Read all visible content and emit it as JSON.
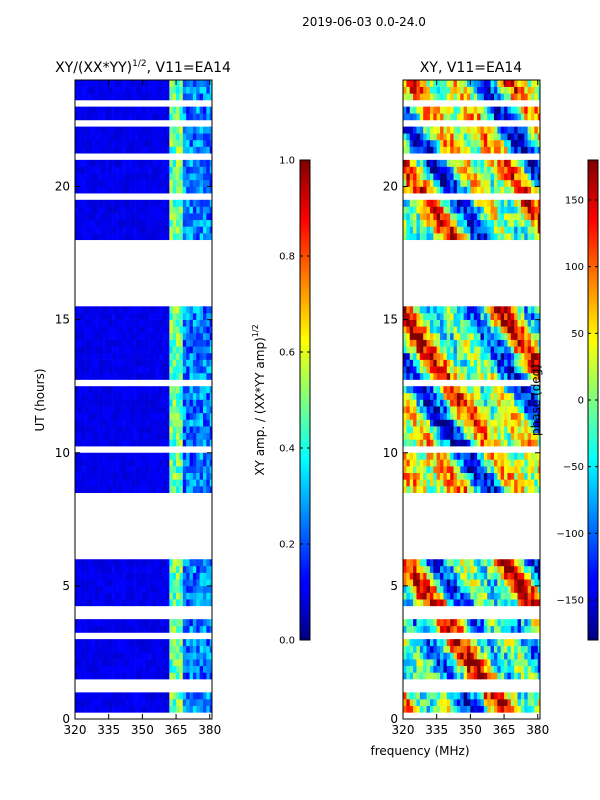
{
  "chart_data": {
    "suptitle": "2019-06-03 0.0-24.0",
    "xlabel": "frequency (MHz)",
    "ylabel": "UT (hours)",
    "xlim": [
      320,
      381
    ],
    "ylim": [
      0,
      24
    ],
    "xticks": [
      320,
      335,
      350,
      365,
      380
    ],
    "yticks": [
      0,
      5,
      10,
      15,
      20
    ],
    "panels": [
      {
        "type": "heatmap",
        "title_main": "XY/(XX*YY)",
        "title_sup": "1/2",
        "title_rest": ", V11=EA14",
        "colorbar": {
          "label_main": "XY amp. / (XX*YY amp)",
          "label_sup": "1/2",
          "range": [
            0.0,
            1.0
          ],
          "ticks": [
            "0.0",
            "0.2",
            "0.4",
            "0.6",
            "0.8",
            "1.0"
          ]
        },
        "bright_band_mhz": [
          361,
          367
        ]
      },
      {
        "type": "heatmap",
        "title_main": "XY, V11=EA14",
        "colorbar": {
          "label_main": "phase (deg)",
          "range": [
            -180,
            180
          ],
          "ticks": [
            "−150",
            "−100",
            "−50",
            "0",
            "50",
            "100",
            "150"
          ]
        }
      }
    ],
    "gaps_hours": [
      [
        6.0,
        8.4
      ],
      [
        15.7,
        18.0
      ],
      [
        20.3,
        20.4
      ],
      [
        23.85,
        24.0
      ],
      [
        3.7,
        4.1
      ],
      [
        12.5,
        12.55
      ]
    ]
  }
}
